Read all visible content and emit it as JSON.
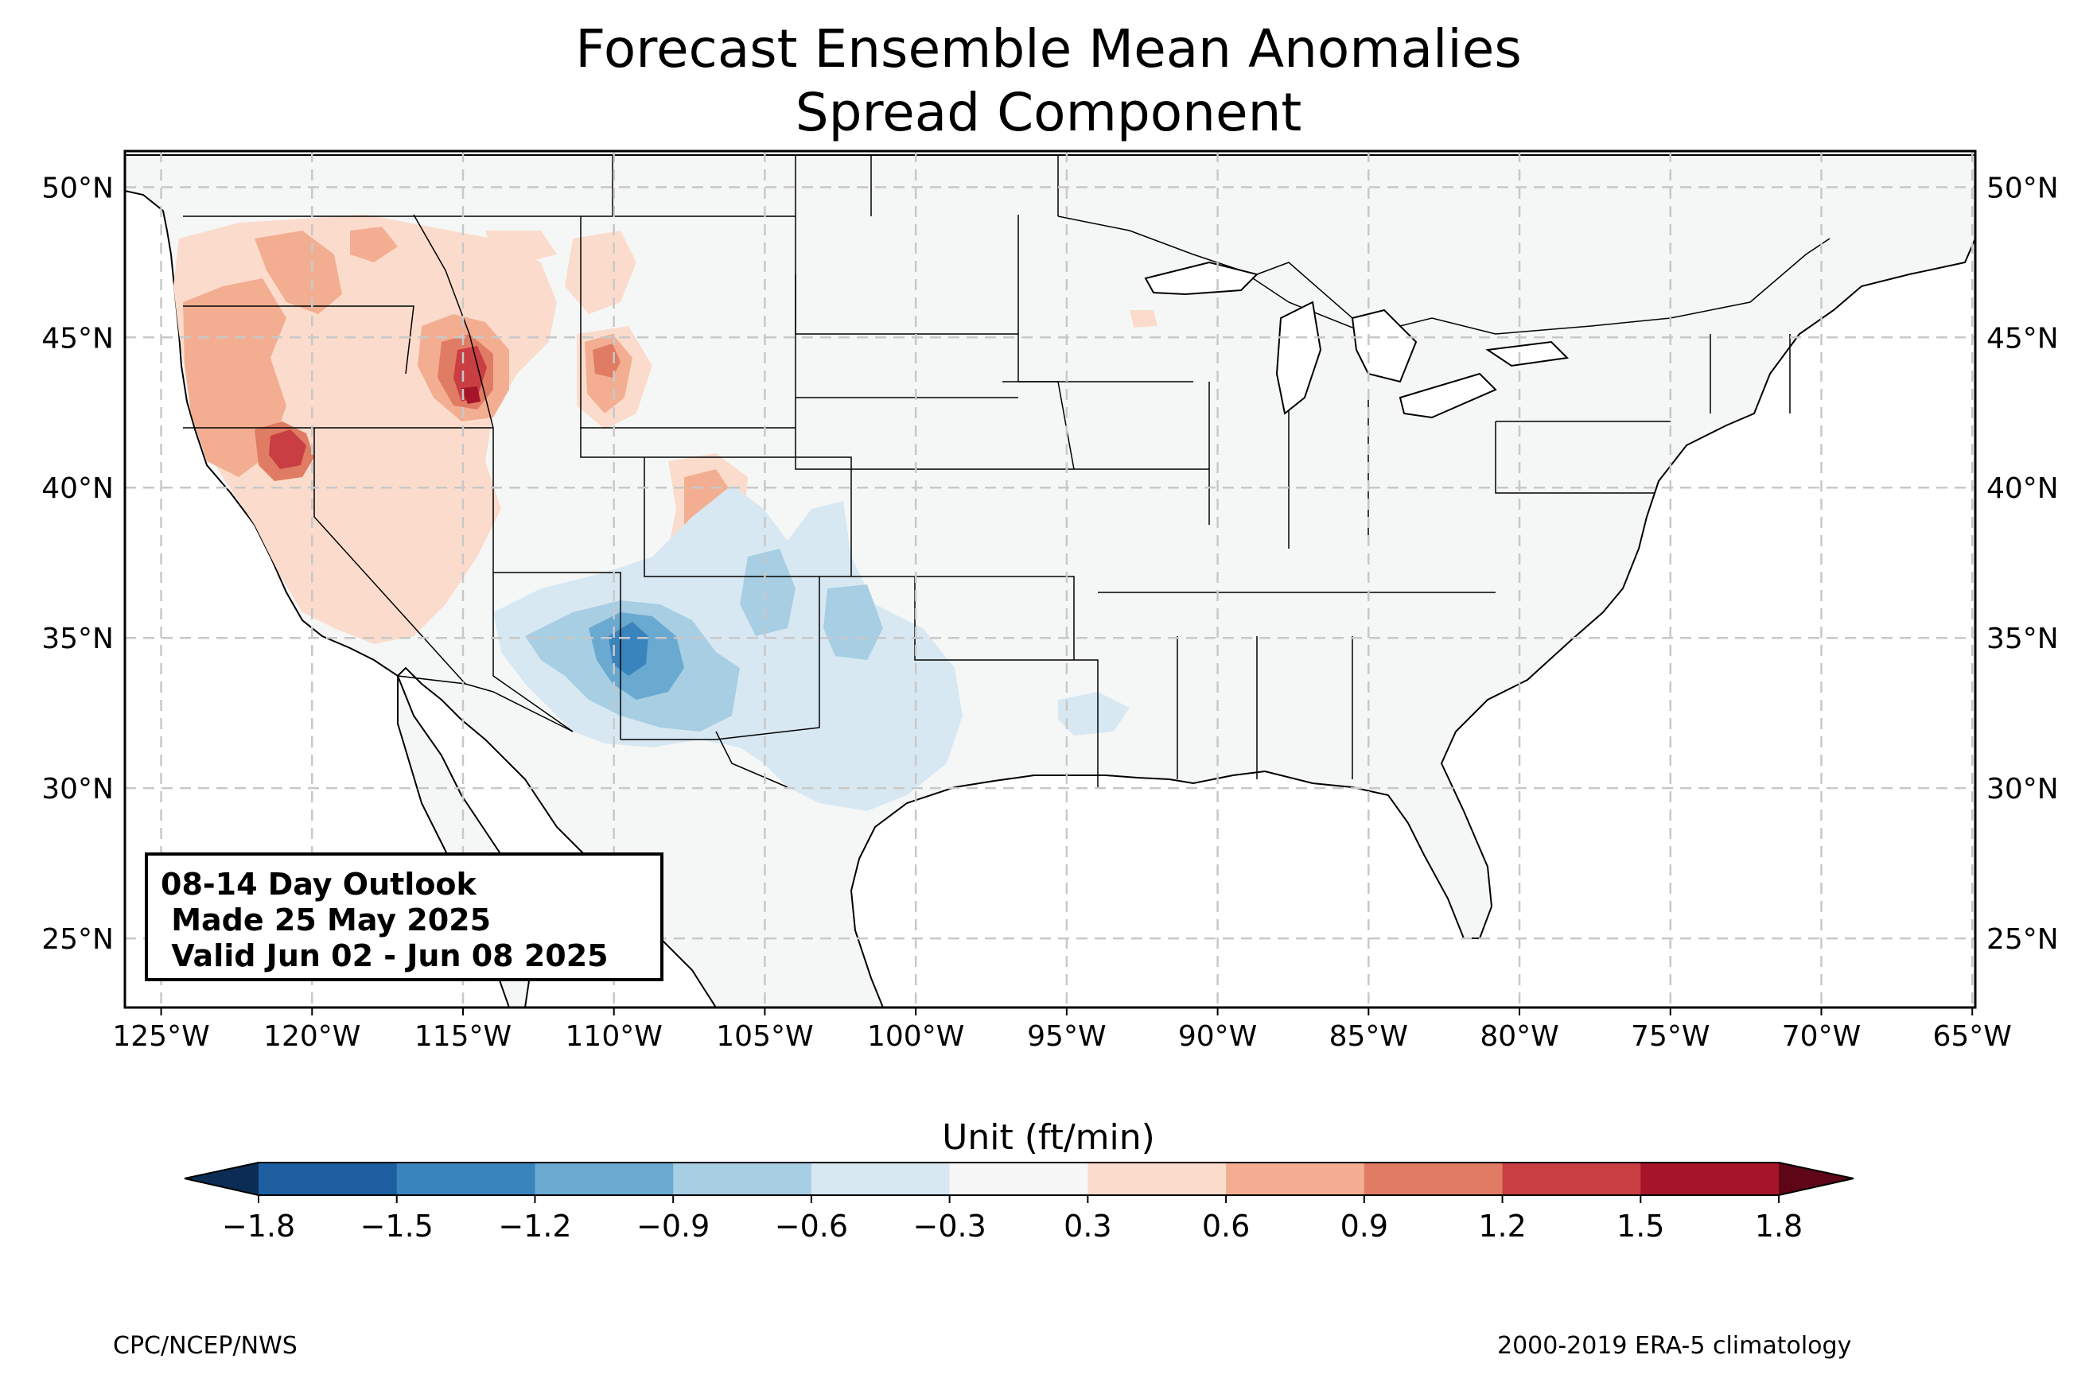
{
  "title": {
    "line1": "Forecast Ensemble Mean Anomalies",
    "line2": "Spread Component"
  },
  "map": {
    "extent": {
      "lon": [
        -126.2,
        -64.9
      ],
      "lat": [
        22.7,
        51.2
      ]
    },
    "lon_ticks": [
      {
        "value": -125,
        "label": "125°W"
      },
      {
        "value": -120,
        "label": "120°W"
      },
      {
        "value": -115,
        "label": "115°W"
      },
      {
        "value": -110,
        "label": "110°W"
      },
      {
        "value": -105,
        "label": "105°W"
      },
      {
        "value": -100,
        "label": "100°W"
      },
      {
        "value": -95,
        "label": "95°W"
      },
      {
        "value": -90,
        "label": "90°W"
      },
      {
        "value": -85,
        "label": "85°W"
      },
      {
        "value": -80,
        "label": "80°W"
      },
      {
        "value": -75,
        "label": "75°W"
      },
      {
        "value": -70,
        "label": "70°W"
      },
      {
        "value": -65,
        "label": "65°W"
      }
    ],
    "lat_ticks": [
      {
        "value": 25,
        "label": "25°N"
      },
      {
        "value": 30,
        "label": "30°N"
      },
      {
        "value": 35,
        "label": "35°N"
      },
      {
        "value": 40,
        "label": "40°N"
      },
      {
        "value": 45,
        "label": "45°N"
      },
      {
        "value": 50,
        "label": "50°N"
      }
    ],
    "grid": true,
    "land_color": "#f5f7f7",
    "ocean_color": "#ffffff"
  },
  "info_box": {
    "line1": "08-14 Day Outlook",
    "line2": " Made 25 May 2025",
    "line3": " Valid Jun 02 - Jun 08 2025"
  },
  "colorbar": {
    "title": "Unit (ft/min)",
    "levels": [
      -1.8,
      -1.5,
      -1.2,
      -0.9,
      -0.6,
      -0.3,
      0.3,
      0.6,
      0.9,
      1.2,
      1.5,
      1.8
    ],
    "tick_labels": [
      "−1.8",
      "−1.5",
      "−1.2",
      "−0.9",
      "−0.6",
      "−0.3",
      "0.3",
      "0.6",
      "0.9",
      "1.2",
      "1.5",
      "1.8"
    ],
    "colors": [
      "#1c5ea0",
      "#3a84bd",
      "#6aa9d0",
      "#a7cee3",
      "#d8e8f2",
      "#f7f7f7",
      "#fbdccc",
      "#f3ae92",
      "#e07c63",
      "#c83e42",
      "#a51428"
    ],
    "under_color": "#0b2d55",
    "over_color": "#5e0617",
    "extend": "both"
  },
  "footer": {
    "left": "CPC/NCEP/NWS",
    "right": "2000-2019 ERA-5 climatology"
  }
}
